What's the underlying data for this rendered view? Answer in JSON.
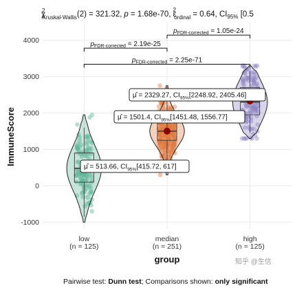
{
  "subtitle": {
    "stat_name": "χ",
    "stat_sup": "2",
    "stat_sub": "Kruskal-Wallis",
    "stat_rest": "(2) = 321.32,",
    "p_label": "p",
    "p_value": " = 1.68e-70,",
    "effect_name": "ε",
    "effect_sup": "2",
    "effect_sub": "ordinal",
    "effect_rest": " = 0.64, CI",
    "ci_sub": "95%",
    "ci_rest": " [0.5"
  },
  "caption": {
    "prefix": "Pairwise test: ",
    "test": "Dunn test",
    "middle": "; Comparisons shown: ",
    "shown": "only significant"
  },
  "watermark": "知乎 @生信",
  "chart_data": {
    "type": "violin",
    "xlabel": "group",
    "ylabel": "ImmuneScore",
    "ylim": [
      -1200,
      4500
    ],
    "yticks": [
      -1000,
      0,
      1000,
      2000,
      3000,
      4000
    ],
    "ytick_labels": [
      "-1000",
      "0",
      "1000",
      "2000",
      "3000",
      "4000"
    ],
    "grid": true,
    "groups": [
      {
        "name": "low",
        "n_label": "(n = 125)",
        "color": "#5fb597",
        "mean": 513.66,
        "ci": [
          415.72,
          617
        ],
        "mean_label": {
          "mu": "μ̂ = 513.66, CI",
          "sub": "95%",
          "rest": "[415.72, 617]"
        },
        "box": {
          "q1": 100,
          "median": 480,
          "q3": 900,
          "whisker_low": -850,
          "whisker_high": 1600
        },
        "range": [
          -1000,
          1950
        ]
      },
      {
        "name": "median",
        "n_label": "(n = 251)",
        "color": "#e07b41",
        "mean": 1501.4,
        "ci": [
          1451.48,
          1556.77
        ],
        "mean_label": {
          "mu": "μ̂ = 1501.4, CI",
          "sub": "95%",
          "rest": "[1451.48, 1556.77]"
        },
        "box": {
          "q1": 1250,
          "median": 1500,
          "q3": 1780,
          "whisker_low": 400,
          "whisker_high": 2450
        },
        "range": [
          300,
          2750
        ]
      },
      {
        "name": "high",
        "n_label": "(n = 125)",
        "color": "#8f86c2",
        "mean": 2329.27,
        "ci": [
          2248.92,
          2405.46
        ],
        "mean_label": {
          "mu": "μ̂ = 2329.27, CI",
          "sub": "95%",
          "rest": "[2248.92, 2405.46]"
        },
        "box": {
          "q1": 1950,
          "median": 2300,
          "q3": 2700,
          "whisker_low": 1450,
          "whisker_high": 3150
        },
        "range": [
          1300,
          3300
        ]
      }
    ],
    "comparisons": [
      {
        "from": "low",
        "to": "median",
        "p_prefix": "p",
        "p_sub": "FDR-corrected",
        "p_value": " = 2.19e-25",
        "y": 3780
      },
      {
        "from": "low",
        "to": "high",
        "p_prefix": "p",
        "p_sub": "FDR-corrected",
        "p_value": " = 2.25e-71",
        "y": 3340
      },
      {
        "from": "median",
        "to": "high",
        "p_prefix": "p",
        "p_sub": "FDR-corrected",
        "p_value": " = 1.05e-24",
        "y": 4140
      }
    ]
  }
}
